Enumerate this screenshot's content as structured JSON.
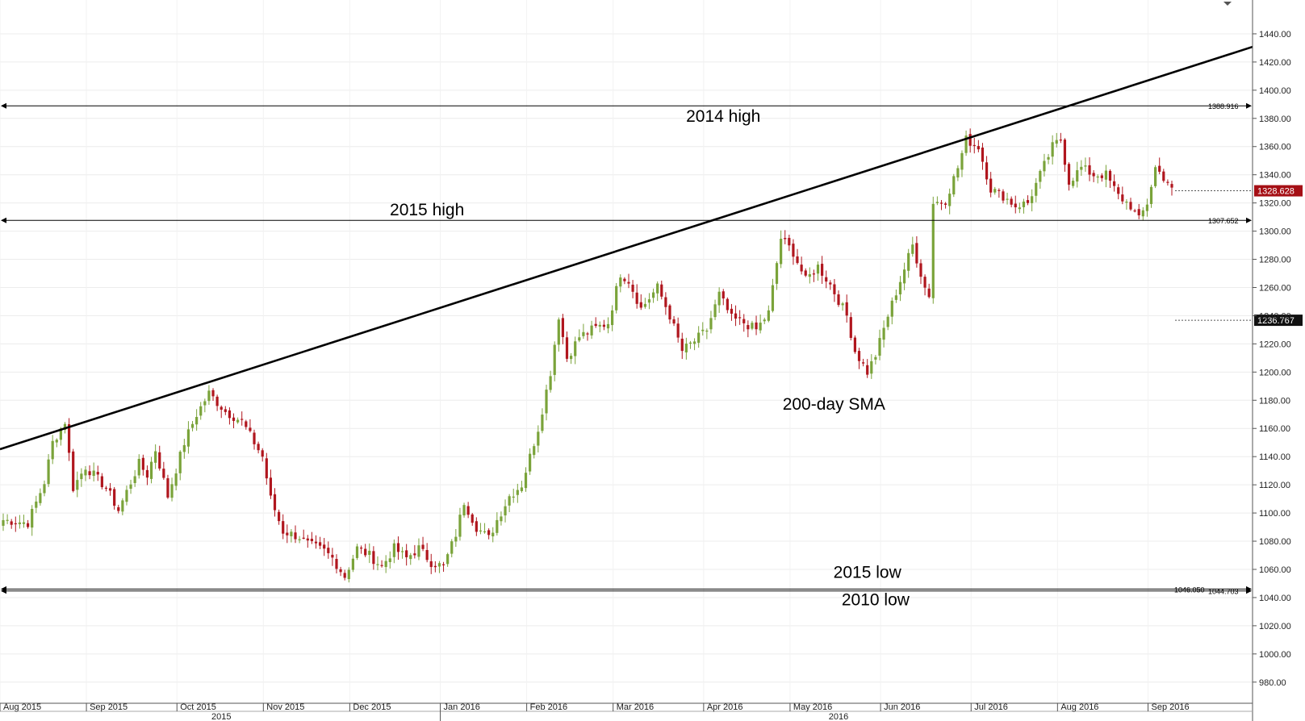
{
  "chart_data": {
    "type": "candlestick",
    "title": "",
    "xlabel": "",
    "ylabel": "",
    "ylim": [
      965,
      1464
    ],
    "y_ticks": [
      "980.00",
      "1000.00",
      "1020.00",
      "1040.00",
      "1060.00",
      "1080.00",
      "1100.00",
      "1120.00",
      "1140.00",
      "1160.00",
      "1180.00",
      "1200.00",
      "1220.00",
      "1240.00",
      "1260.00",
      "1280.00",
      "1300.00",
      "1320.00",
      "1340.00",
      "1360.00",
      "1380.00",
      "1400.00",
      "1420.00",
      "1440.00"
    ],
    "x_month_labels": [
      {
        "label": "Aug 2015",
        "idx": 0
      },
      {
        "label": "Sep 2015",
        "idx": 21
      },
      {
        "label": "Oct 2015",
        "idx": 43
      },
      {
        "label": "Nov 2015",
        "idx": 64
      },
      {
        "label": "Dec 2015",
        "idx": 85
      },
      {
        "label": "Jan 2016",
        "idx": 107
      },
      {
        "label": "Feb 2016",
        "idx": 128
      },
      {
        "label": "Mar 2016",
        "idx": 149
      },
      {
        "label": "Apr 2016",
        "idx": 171
      },
      {
        "label": "May 2016",
        "idx": 192
      },
      {
        "label": "Jun 2016",
        "idx": 214
      },
      {
        "label": "Jul 2016",
        "idx": 236
      },
      {
        "label": "Aug 2016",
        "idx": 257
      },
      {
        "label": "Sep 2016",
        "idx": 279
      }
    ],
    "x_year_labels": [
      {
        "label": "2015",
        "idx": 53
      },
      {
        "label": "2016",
        "idx": 203
      }
    ],
    "close_anchors": [
      [
        0,
        1095
      ],
      [
        6,
        1093
      ],
      [
        10,
        1122
      ],
      [
        12,
        1150
      ],
      [
        15,
        1165
      ],
      [
        17,
        1118
      ],
      [
        20,
        1133
      ],
      [
        25,
        1118
      ],
      [
        28,
        1102
      ],
      [
        33,
        1135
      ],
      [
        35,
        1127
      ],
      [
        37,
        1145
      ],
      [
        40,
        1112
      ],
      [
        44,
        1150
      ],
      [
        47,
        1170
      ],
      [
        50,
        1185
      ],
      [
        54,
        1172
      ],
      [
        58,
        1165
      ],
      [
        63,
        1140
      ],
      [
        65,
        1110
      ],
      [
        68,
        1087
      ],
      [
        72,
        1083
      ],
      [
        74,
        1078
      ],
      [
        78,
        1073
      ],
      [
        80,
        1068
      ],
      [
        83,
        1055
      ],
      [
        86,
        1075
      ],
      [
        89,
        1070
      ],
      [
        92,
        1062
      ],
      [
        95,
        1075
      ],
      [
        98,
        1068
      ],
      [
        101,
        1075
      ],
      [
        104,
        1065
      ],
      [
        107,
        1062
      ],
      [
        110,
        1085
      ],
      [
        112,
        1108
      ],
      [
        115,
        1090
      ],
      [
        118,
        1082
      ],
      [
        120,
        1095
      ],
      [
        123,
        1112
      ],
      [
        126,
        1120
      ],
      [
        128,
        1140
      ],
      [
        130,
        1160
      ],
      [
        133,
        1200
      ],
      [
        135,
        1240
      ],
      [
        137,
        1210
      ],
      [
        140,
        1225
      ],
      [
        143,
        1230
      ],
      [
        147,
        1235
      ],
      [
        150,
        1270
      ],
      [
        152,
        1265
      ],
      [
        155,
        1245
      ],
      [
        159,
        1260
      ],
      [
        162,
        1240
      ],
      [
        165,
        1215
      ],
      [
        168,
        1222
      ],
      [
        171,
        1230
      ],
      [
        174,
        1255
      ],
      [
        177,
        1238
      ],
      [
        180,
        1235
      ],
      [
        183,
        1230
      ],
      [
        186,
        1242
      ],
      [
        189,
        1295
      ],
      [
        192,
        1285
      ],
      [
        195,
        1265
      ],
      [
        198,
        1275
      ],
      [
        201,
        1262
      ],
      [
        205,
        1240
      ],
      [
        207,
        1215
      ],
      [
        210,
        1200
      ],
      [
        212,
        1212
      ],
      [
        215,
        1240
      ],
      [
        218,
        1265
      ],
      [
        221,
        1290
      ],
      [
        224,
        1260
      ],
      [
        225,
        1255
      ],
      [
        226,
        1320
      ],
      [
        229,
        1322
      ],
      [
        232,
        1345
      ],
      [
        234,
        1365
      ],
      [
        237,
        1360
      ],
      [
        240,
        1330
      ],
      [
        243,
        1325
      ],
      [
        246,
        1318
      ],
      [
        249,
        1320
      ],
      [
        252,
        1340
      ],
      [
        255,
        1360
      ],
      [
        257,
        1365
      ],
      [
        259,
        1335
      ],
      [
        262,
        1345
      ],
      [
        265,
        1340
      ],
      [
        268,
        1340
      ],
      [
        271,
        1325
      ],
      [
        274,
        1318
      ],
      [
        276,
        1308
      ],
      [
        278,
        1320
      ],
      [
        280,
        1345
      ],
      [
        283,
        1335
      ],
      [
        284,
        1328.6
      ]
    ],
    "trendline": [
      {
        "idx": 0,
        "value": 1146
      },
      {
        "idx": 290,
        "value": 1418
      }
    ],
    "levels": [
      {
        "value": 1388.916,
        "label": "1388.916",
        "annotation": "2014 high"
      },
      {
        "value": 1307.652,
        "label": "1307.652",
        "annotation": "2015 high"
      },
      {
        "value": 1046.05,
        "label": "1046.050",
        "annotation": "2015 low"
      },
      {
        "value": 1044.703,
        "label": "1044.703",
        "annotation": "2010 low"
      }
    ],
    "annotations": [
      {
        "text": "200-day SMA",
        "idx": 196,
        "value": 1178
      }
    ],
    "price_tags": [
      {
        "value": 1328.628,
        "text": "1328.628",
        "color": "#a50f15"
      },
      {
        "value": 1236.767,
        "text": "1236.767",
        "color": "#111111"
      }
    ],
    "colors": {
      "up": "#7aa33a",
      "down": "#b0161e",
      "line": "#000000"
    },
    "grid": true
  }
}
